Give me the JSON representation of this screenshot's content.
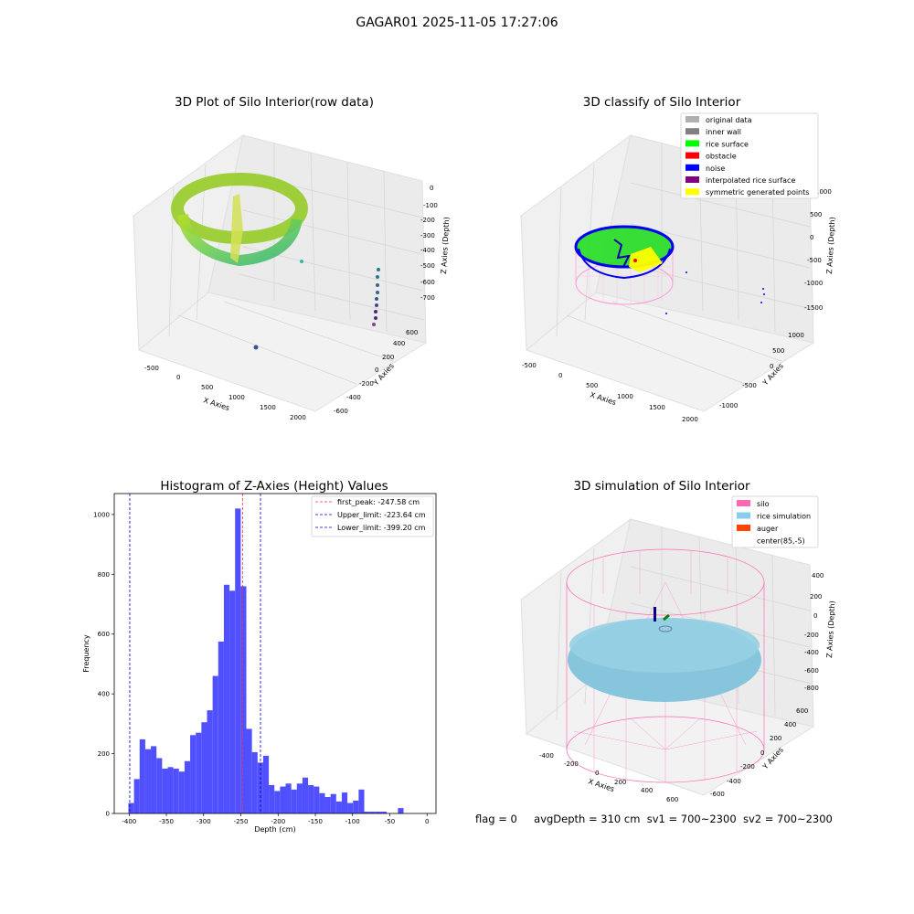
{
  "suptitle": "GAGAR01 2025-11-05 17:27:06",
  "footer": {
    "flag": "flag = 0",
    "avg_depth": "avgDepth = 310 cm",
    "sv1": "sv1 = 700~2300",
    "sv2": "sv2 = 700~2300"
  },
  "chart_data": [
    {
      "type": "scatter",
      "title": "3D Plot of Silo Interior(row data)",
      "xlabel": "X Axies",
      "ylabel": "Y Axies",
      "zlabel": "Z Axies (Depth)",
      "xticks": [
        "-500",
        "0",
        "500",
        "1000",
        "1500",
        "2000"
      ],
      "yticks": [
        "-600",
        "-400",
        "-200",
        "0",
        "200",
        "400",
        "600"
      ],
      "zticks": [
        "0",
        "-100",
        "-200",
        "-300",
        "-400",
        "-500",
        "-600",
        "-700"
      ],
      "colormap": "viridis"
    },
    {
      "type": "scatter",
      "title": "3D classify of Silo Interior",
      "xlabel": "X Axies",
      "ylabel": "Y Axies",
      "zlabel": "Z Axies (Depth)",
      "xticks": [
        "-500",
        "0",
        "500",
        "1000",
        "1500",
        "2000"
      ],
      "yticks": [
        "-1000",
        "-500",
        "0",
        "500",
        "1000"
      ],
      "zticks": [
        "1000",
        "500",
        "0",
        "-500",
        "-1000",
        "-1500"
      ],
      "legend": [
        {
          "label": "original data",
          "color": "#b0b0b0"
        },
        {
          "label": "inner wall",
          "color": "#808080"
        },
        {
          "label": "rice surface",
          "color": "#00ff00"
        },
        {
          "label": "obstacle",
          "color": "#ff0000"
        },
        {
          "label": "noise",
          "color": "#0000ff"
        },
        {
          "label": "interpolated rice surface",
          "color": "#800080"
        },
        {
          "label": "symmetric generated points",
          "color": "#ffff00"
        }
      ],
      "legend_position": "top-right"
    },
    {
      "type": "bar",
      "title": "Histogram of Z-Axies (Height) Values",
      "xlabel": "Depth (cm)",
      "ylabel": "Frequency",
      "xlim": [
        -420,
        12
      ],
      "ylim": [
        0,
        1070
      ],
      "xticks": [
        -400,
        -350,
        -300,
        -250,
        -200,
        -150,
        -100,
        -50,
        0
      ],
      "yticks": [
        0,
        200,
        400,
        600,
        800,
        1000
      ],
      "bin_start": -401,
      "bin_width": 7.54,
      "values": [
        35,
        115,
        248,
        215,
        225,
        185,
        150,
        155,
        150,
        140,
        175,
        262,
        270,
        305,
        345,
        460,
        575,
        765,
        745,
        1020,
        760,
        283,
        205,
        170,
        193,
        95,
        75,
        90,
        100,
        80,
        100,
        120,
        95,
        90,
        68,
        55,
        65,
        40,
        70,
        35,
        43,
        80,
        6,
        6,
        6,
        6,
        0,
        0,
        18
      ],
      "bar_color": "#5050ff",
      "vlines": [
        {
          "label": "first_peak: -247.58 cm",
          "x": -247.58,
          "color": "#ff3333"
        },
        {
          "label": "Upper_limit: -223.64 cm",
          "x": -223.64,
          "color": "#0000cc"
        },
        {
          "label": "Lower_limit: -399.20 cm",
          "x": -399.2,
          "color": "#0000cc"
        }
      ],
      "legend_position": "top-right"
    },
    {
      "type": "scatter",
      "title": "3D simulation of Silo Interior",
      "xlabel": "X Axies",
      "ylabel": "Y Axies",
      "zlabel": "Z Axies (Depth)",
      "xticks": [
        "-400",
        "-200",
        "0",
        "200",
        "400",
        "600"
      ],
      "yticks": [
        "-600",
        "-400",
        "-200",
        "0",
        "200",
        "400",
        "600"
      ],
      "zticks": [
        "400",
        "200",
        "0",
        "-200",
        "-400",
        "-600",
        "-800"
      ],
      "legend": [
        {
          "label": "silo",
          "color": "#ff69b4"
        },
        {
          "label": "rice simulation",
          "color": "#87ceeb"
        },
        {
          "label": "auger",
          "color": "#ff4500"
        },
        {
          "label": "center(85,-5)",
          "color": "#ffffff"
        }
      ],
      "legend_position": "top-right"
    }
  ]
}
